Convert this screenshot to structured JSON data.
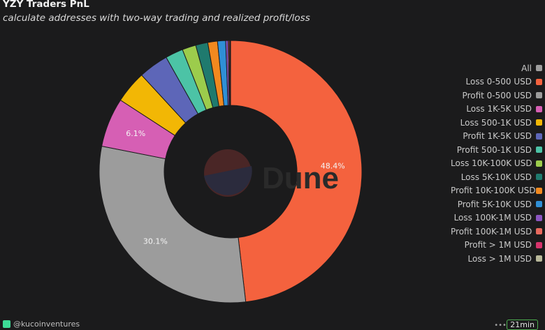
{
  "header": {
    "title": "YZY Traders PnL",
    "subtitle": "calculate addresses with two-way trading and realized profit/loss"
  },
  "watermark": "Dune",
  "footer": {
    "author": "@kucoinventures",
    "author_icon": "kucoin-icon",
    "time_ago": "21min"
  },
  "chart_data": {
    "type": "pie",
    "hole": true,
    "start_angle_deg": 0,
    "direction": "clockwise",
    "slices": [
      {
        "label": "Loss 0-500 USD",
        "value": 48.4,
        "color": "#f4623e",
        "display": "48.4%"
      },
      {
        "label": "Profit 0-500 USD",
        "value": 30.1,
        "color": "#9c9c9c",
        "display": "30.1%"
      },
      {
        "label": "Loss 1K-5K USD",
        "value": 6.1,
        "color": "#d65fb4",
        "display": "6.1%"
      },
      {
        "label": "Loss 500-1K USD",
        "value": 4.0,
        "color": "#f2b705",
        "display": ""
      },
      {
        "label": "Profit 1K-5K USD",
        "value": 3.7,
        "color": "#5d66b8",
        "display": ""
      },
      {
        "label": "Profit 500-1K USD",
        "value": 2.2,
        "color": "#4cc3a6",
        "display": ""
      },
      {
        "label": "Loss 10K-100K USD",
        "value": 1.7,
        "color": "#9ccc4c",
        "display": ""
      },
      {
        "label": "Loss 5K-10K USD",
        "value": 1.5,
        "color": "#1f7a6e",
        "display": ""
      },
      {
        "label": "Profit 10K-100K USD",
        "value": 1.2,
        "color": "#f2891f",
        "display": ""
      },
      {
        "label": "Profit 5K-10K USD",
        "value": 1.0,
        "color": "#2f8fd6",
        "display": ""
      },
      {
        "label": "Loss 100K-1M USD",
        "value": 0.3,
        "color": "#8b55c0",
        "display": ""
      },
      {
        "label": "Profit 100K-1M USD",
        "value": 0.15,
        "color": "#e86a5e",
        "display": ""
      },
      {
        "label": "Profit > 1M USD",
        "value": 0.1,
        "color": "#d6336c",
        "display": ""
      },
      {
        "label": "Loss > 1M USD",
        "value": 0.05,
        "color": "#b8b89a",
        "display": ""
      }
    ],
    "legend": {
      "position": "right",
      "entries": [
        {
          "label": "All",
          "color": "#9e9e9e"
        },
        {
          "label": "Loss 0-500 USD",
          "color": "#f4623e"
        },
        {
          "label": "Profit 0-500 USD",
          "color": "#9c9c9c"
        },
        {
          "label": "Loss 1K-5K USD",
          "color": "#d65fb4"
        },
        {
          "label": "Loss 500-1K USD",
          "color": "#f2b705"
        },
        {
          "label": "Profit 1K-5K USD",
          "color": "#5d66b8"
        },
        {
          "label": "Profit 500-1K USD",
          "color": "#4cc3a6"
        },
        {
          "label": "Loss 10K-100K USD",
          "color": "#9ccc4c"
        },
        {
          "label": "Loss 5K-10K USD",
          "color": "#1f7a6e"
        },
        {
          "label": "Profit 10K-100K USD",
          "color": "#f2891f"
        },
        {
          "label": "Profit 5K-10K USD",
          "color": "#2f8fd6"
        },
        {
          "label": "Loss 100K-1M USD",
          "color": "#8b55c0"
        },
        {
          "label": "Profit 100K-1M USD",
          "color": "#e86a5e"
        },
        {
          "label": "Profit > 1M USD",
          "color": "#d6336c"
        },
        {
          "label": "Loss > 1M USD",
          "color": "#b8b89a"
        }
      ]
    }
  }
}
